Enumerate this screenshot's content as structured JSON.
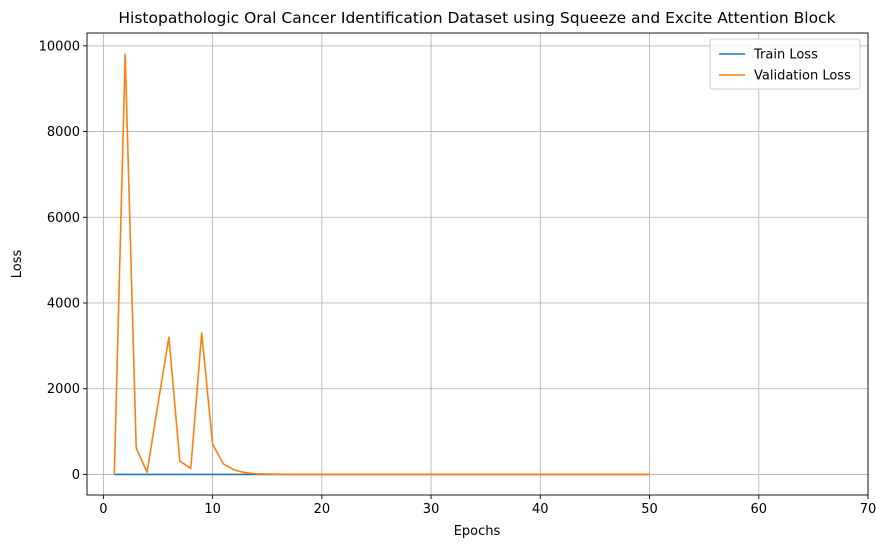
{
  "chart_data": {
    "type": "line",
    "title": "Histopathologic Oral Cancer Identification Dataset using Squeeze and Excite Attention Block",
    "xlabel": "Epochs",
    "ylabel": "Loss",
    "xlim": [
      -1.5,
      70
    ],
    "ylim": [
      -480,
      10300
    ],
    "xticks": [
      0,
      10,
      20,
      30,
      40,
      50,
      60,
      70
    ],
    "yticks": [
      0,
      2000,
      4000,
      6000,
      8000,
      10000
    ],
    "grid": true,
    "legend_position": "top-right",
    "series": [
      {
        "name": "Train Loss",
        "color": "#1f77b4",
        "x": [
          1,
          2,
          3,
          4,
          5,
          6,
          7,
          8,
          9,
          10,
          11,
          12,
          13,
          14,
          15,
          16,
          17,
          18,
          19,
          20,
          21,
          22,
          23,
          24,
          25,
          26,
          27,
          28,
          29,
          30,
          31,
          32,
          33,
          34,
          35,
          36,
          37,
          38,
          39,
          40,
          41,
          42,
          43,
          44,
          45,
          46,
          47,
          48,
          49,
          50
        ],
        "y": [
          1,
          0.7,
          0.6,
          0.55,
          0.5,
          0.48,
          0.45,
          0.43,
          0.42,
          0.4,
          0.39,
          0.38,
          0.37,
          0.36,
          0.35,
          0.34,
          0.33,
          0.32,
          0.31,
          0.3,
          0.3,
          0.29,
          0.29,
          0.28,
          0.28,
          0.27,
          0.27,
          0.26,
          0.26,
          0.25,
          0.25,
          0.25,
          0.24,
          0.24,
          0.24,
          0.23,
          0.23,
          0.23,
          0.22,
          0.22,
          0.22,
          0.21,
          0.21,
          0.21,
          0.2,
          0.2,
          0.2,
          0.2,
          0.19,
          0.19
        ]
      },
      {
        "name": "Validation Loss",
        "color": "#ff7f0e",
        "x": [
          1,
          2,
          3,
          4,
          5,
          6,
          7,
          8,
          9,
          10,
          11,
          12,
          13,
          14,
          15,
          16,
          17,
          18,
          19,
          20,
          21,
          22,
          23,
          24,
          25,
          26,
          27,
          28,
          29,
          30,
          31,
          32,
          33,
          34,
          35,
          36,
          37,
          38,
          39,
          40,
          41,
          42,
          43,
          44,
          45,
          46,
          47,
          48,
          49,
          50
        ],
        "y": [
          5,
          9800,
          620,
          50,
          1650,
          3200,
          310,
          140,
          3300,
          700,
          240,
          100,
          40,
          15,
          8,
          5,
          4,
          3,
          3,
          2,
          2,
          2,
          2,
          2,
          2,
          2,
          2,
          2,
          2,
          2,
          2,
          2,
          2,
          2,
          2,
          2,
          2,
          2,
          2,
          2,
          2,
          2,
          2,
          2,
          2,
          2,
          2,
          2,
          2,
          2
        ]
      }
    ]
  }
}
